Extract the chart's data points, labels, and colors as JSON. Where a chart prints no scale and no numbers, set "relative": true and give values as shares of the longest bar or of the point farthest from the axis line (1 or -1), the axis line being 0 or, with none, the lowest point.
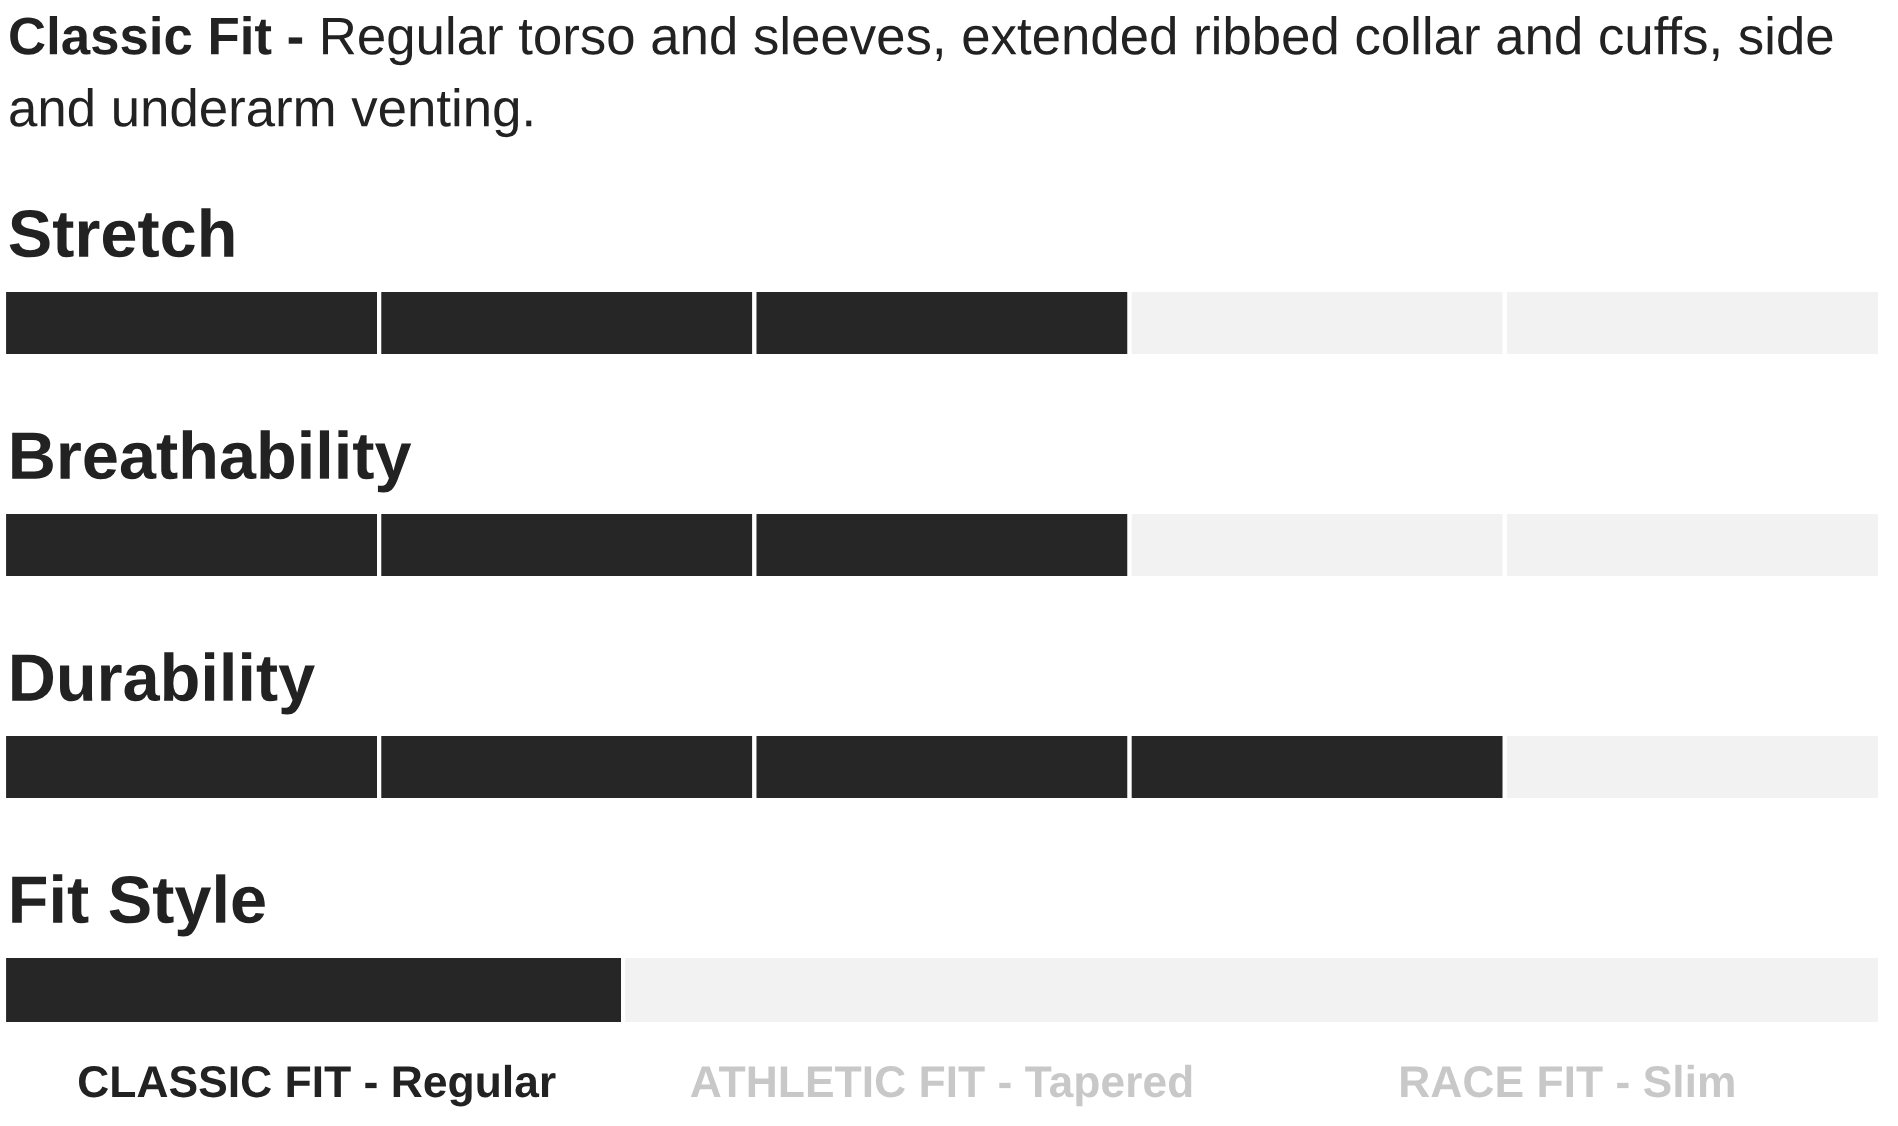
{
  "chart_data": [
    {
      "type": "other",
      "title": "Classic Fit -",
      "subtitle": "Regular torso and sleeves, extended ribbed collar and cuffs, side and underarm venting."
    },
    {
      "type": "bar",
      "orientation": "horizontal",
      "stacked": true,
      "relative": true,
      "title": "Stretch",
      "categories": [
        null
      ],
      "series": [
        {
          "color": "#262626",
          "values": [
            0.2
          ]
        },
        {
          "color": "#262626",
          "values": [
            0.2
          ]
        },
        {
          "color": "#262626",
          "values": [
            0.2
          ]
        },
        {
          "color": "#f2f2f2",
          "values": [
            0.2
          ]
        },
        {
          "color": "#f2f2f2",
          "values": [
            0.2
          ]
        }
      ]
    },
    {
      "type": "bar",
      "orientation": "horizontal",
      "stacked": true,
      "relative": true,
      "title": "Breathability",
      "categories": [
        null
      ],
      "series": [
        {
          "color": "#262626",
          "values": [
            0.2
          ]
        },
        {
          "color": "#262626",
          "values": [
            0.2
          ]
        },
        {
          "color": "#262626",
          "values": [
            0.2
          ]
        },
        {
          "color": "#f2f2f2",
          "values": [
            0.2
          ]
        },
        {
          "color": "#f2f2f2",
          "values": [
            0.2
          ]
        }
      ]
    },
    {
      "type": "bar",
      "orientation": "horizontal",
      "stacked": true,
      "relative": true,
      "title": "Durability",
      "categories": [
        null
      ],
      "series": [
        {
          "color": "#262626",
          "values": [
            0.2
          ]
        },
        {
          "color": "#262626",
          "values": [
            0.2
          ]
        },
        {
          "color": "#262626",
          "values": [
            0.2
          ]
        },
        {
          "color": "#262626",
          "values": [
            0.2
          ]
        },
        {
          "color": "#f2f2f2",
          "values": [
            0.2
          ]
        }
      ]
    },
    {
      "type": "bar",
      "orientation": "horizontal",
      "stacked": true,
      "relative": true,
      "title": "Fit Style",
      "categories": [
        null
      ],
      "series": [
        {
          "color": "#262626",
          "values": [
            0.33
          ]
        },
        {
          "color": "#f2f2f2",
          "values": [
            0.67
          ]
        }
      ],
      "annotations": [
        "CLASSIC FIT - Regular",
        "ATHLETIC FIT - Tapered",
        "RACE FIT - Slim"
      ]
    }
  ]
}
